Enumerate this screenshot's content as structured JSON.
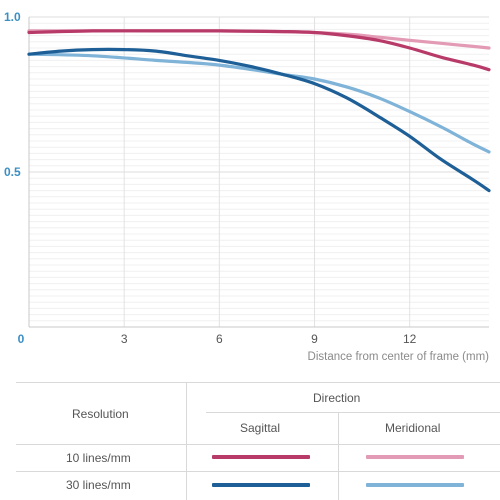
{
  "chart_data": {
    "type": "line",
    "title": "",
    "xlabel": "Distance from center of frame (mm)",
    "ylabel": "",
    "xlim": [
      0,
      14.5
    ],
    "ylim": [
      0,
      1.0
    ],
    "x_ticks": [
      0,
      3,
      6,
      9,
      12
    ],
    "x_tick_labels": [
      "0",
      "3",
      "6",
      "9",
      "12"
    ],
    "y_ticks": [
      0.5,
      1.0
    ],
    "y_tick_labels": [
      "0.5",
      "1.0"
    ],
    "grid": true,
    "series": [
      {
        "resolution": "10 lines/mm",
        "direction": "Sagittal",
        "color": "#b83a68",
        "points": [
          [
            0,
            0.95
          ],
          [
            2,
            0.955
          ],
          [
            4,
            0.955
          ],
          [
            6,
            0.955
          ],
          [
            8,
            0.953
          ],
          [
            9,
            0.95
          ],
          [
            10,
            0.94
          ],
          [
            11,
            0.925
          ],
          [
            12,
            0.9
          ],
          [
            13,
            0.87
          ],
          [
            14,
            0.845
          ],
          [
            14.5,
            0.83
          ]
        ]
      },
      {
        "resolution": "10 lines/mm",
        "direction": "Meridional",
        "color": "#e39ab4",
        "points": [
          [
            0,
            0.955
          ],
          [
            3,
            0.955
          ],
          [
            6,
            0.955
          ],
          [
            8,
            0.953
          ],
          [
            10,
            0.945
          ],
          [
            11,
            0.935
          ],
          [
            12,
            0.925
          ],
          [
            13,
            0.915
          ],
          [
            14,
            0.905
          ],
          [
            14.5,
            0.9
          ]
        ]
      },
      {
        "resolution": "30 lines/mm",
        "direction": "Sagittal",
        "color": "#1d5f96",
        "points": [
          [
            0,
            0.88
          ],
          [
            1,
            0.89
          ],
          [
            2,
            0.895
          ],
          [
            3,
            0.895
          ],
          [
            4,
            0.89
          ],
          [
            5,
            0.875
          ],
          [
            6,
            0.86
          ],
          [
            7,
            0.84
          ],
          [
            8,
            0.815
          ],
          [
            9,
            0.785
          ],
          [
            10,
            0.74
          ],
          [
            11,
            0.68
          ],
          [
            12,
            0.615
          ],
          [
            13,
            0.54
          ],
          [
            14,
            0.475
          ],
          [
            14.5,
            0.44
          ]
        ]
      },
      {
        "resolution": "30 lines/mm",
        "direction": "Meridional",
        "color": "#7fb3d8",
        "points": [
          [
            0,
            0.88
          ],
          [
            2,
            0.875
          ],
          [
            4,
            0.86
          ],
          [
            6,
            0.845
          ],
          [
            8,
            0.815
          ],
          [
            9,
            0.8
          ],
          [
            10,
            0.775
          ],
          [
            11,
            0.74
          ],
          [
            12,
            0.695
          ],
          [
            13,
            0.645
          ],
          [
            14,
            0.59
          ],
          [
            14.5,
            0.565
          ]
        ]
      }
    ]
  },
  "legend": {
    "direction_header": "Direction",
    "resolution_header": "Resolution",
    "sagittal_label": "Sagittal",
    "meridional_label": "Meridional",
    "row_10_label": "10 lines/mm",
    "row_30_label": "30 lines/mm"
  }
}
